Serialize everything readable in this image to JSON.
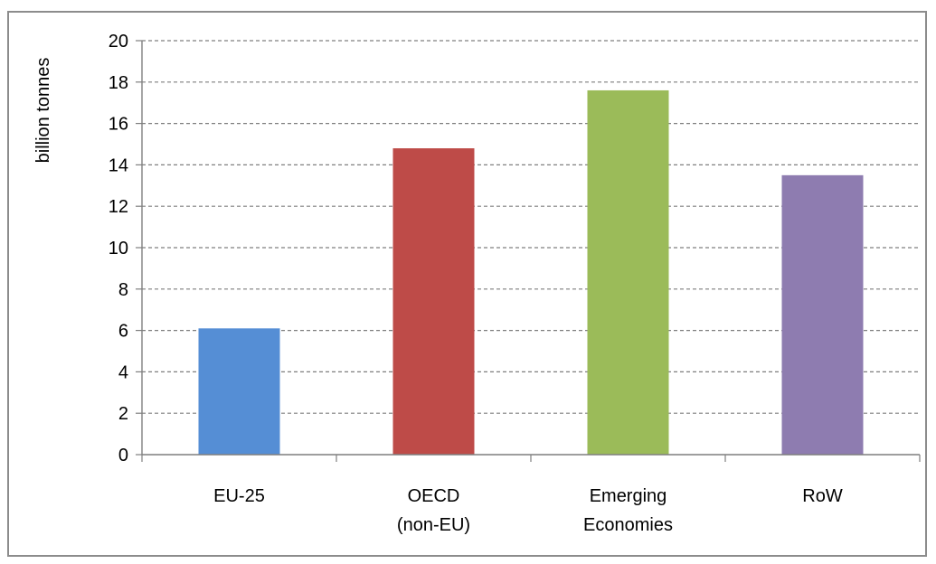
{
  "chart_data": {
    "type": "bar",
    "title": "",
    "xlabel": "",
    "ylabel": "billion tonnes",
    "ylim": [
      0,
      20
    ],
    "yticks": [
      "0",
      "2",
      "4",
      "6",
      "8",
      "10",
      "12",
      "14",
      "16",
      "18",
      "20"
    ],
    "grid": true,
    "legend": "none",
    "categories": [
      [
        "EU-25"
      ],
      [
        "OECD",
        "(non-EU)"
      ],
      [
        "Emerging",
        "Economies"
      ],
      [
        "RoW"
      ]
    ],
    "values": [
      6.1,
      14.8,
      17.6,
      13.5
    ],
    "colors": [
      "#558ED5",
      "#BE4B48",
      "#9BBB59",
      "#8E7CB0"
    ]
  }
}
